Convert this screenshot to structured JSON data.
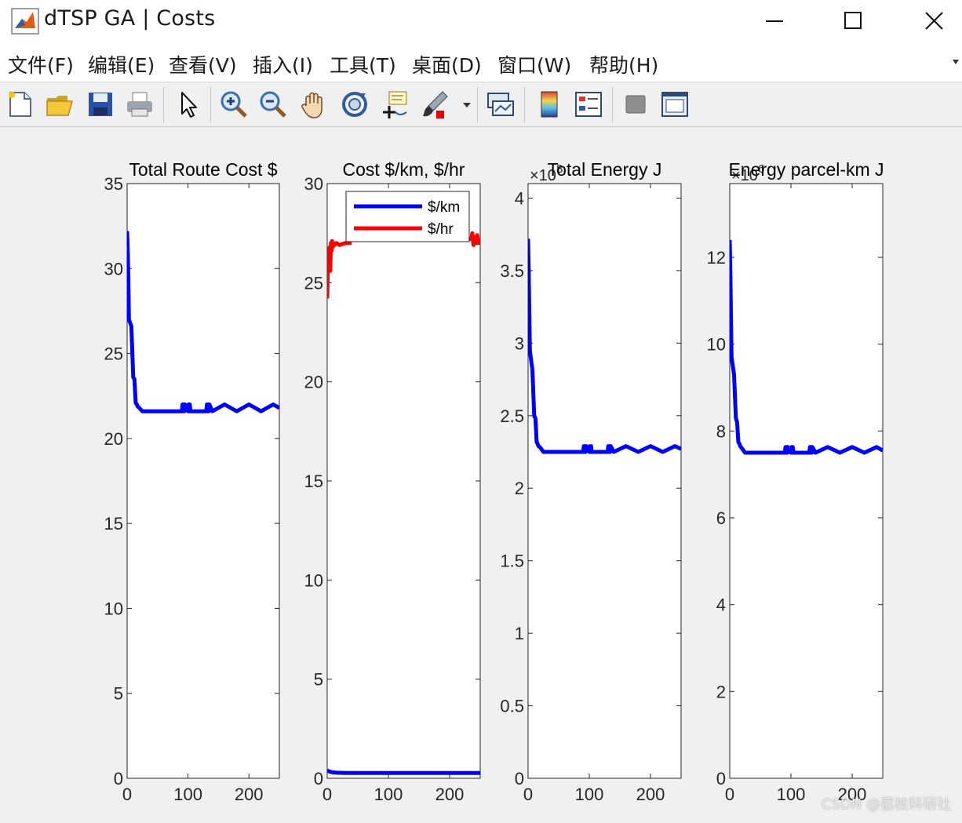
{
  "window": {
    "title": "dTSP GA | Costs"
  },
  "menu": [
    {
      "label": "文件(F)",
      "icon": "menu-file"
    },
    {
      "label": "编辑(E)",
      "icon": "menu-edit"
    },
    {
      "label": "查看(V)",
      "icon": "menu-view"
    },
    {
      "label": "插入(I)",
      "icon": "menu-insert"
    },
    {
      "label": "工具(T)",
      "icon": "menu-tools"
    },
    {
      "label": "桌面(D)",
      "icon": "menu-desktop"
    },
    {
      "label": "窗口(W)",
      "icon": "menu-window"
    },
    {
      "label": "帮助(H)",
      "icon": "menu-help"
    }
  ],
  "toolbar": [
    {
      "name": "new-figure-icon"
    },
    {
      "name": "open-file-icon"
    },
    {
      "name": "save-icon"
    },
    {
      "name": "print-icon"
    },
    {
      "name": "edit-plot-arrow-icon"
    },
    {
      "name": "zoom-in-icon"
    },
    {
      "name": "zoom-out-icon"
    },
    {
      "name": "pan-hand-icon"
    },
    {
      "name": "rotate-3d-icon"
    },
    {
      "name": "data-cursor-icon"
    },
    {
      "name": "brush-icon"
    },
    {
      "name": "link-plot-icon"
    },
    {
      "name": "colorbar-icon"
    },
    {
      "name": "legend-icon"
    },
    {
      "name": "hide-plot-tools-icon"
    },
    {
      "name": "show-plot-tools-icon"
    }
  ],
  "watermark": "CSDN @荔枝科研社",
  "chart_data": [
    {
      "type": "line",
      "title": "Total Route Cost $",
      "xlim": [
        0,
        250
      ],
      "xticks": [
        "0",
        "100",
        "200"
      ],
      "ylim": [
        0,
        35
      ],
      "yticks": [
        "0",
        "5",
        "10",
        "15",
        "20",
        "25",
        "30",
        "35"
      ],
      "exponent": "",
      "series": [
        {
          "color": "#0000ff",
          "x": [
            0,
            1,
            2,
            3,
            5,
            7,
            10,
            12,
            14,
            16,
            17,
            20,
            25,
            30,
            40,
            60,
            90,
            91,
            92,
            93,
            94,
            95,
            100,
            101,
            102,
            103,
            104,
            105,
            106,
            110,
            130,
            131,
            132,
            133,
            134,
            135,
            140,
            160,
            180,
            200,
            220,
            240,
            250
          ],
          "y": [
            32.2,
            31.0,
            29.5,
            27.0,
            26.8,
            26.6,
            23.6,
            23.5,
            22.1,
            22.0,
            21.9,
            21.8,
            21.6,
            21.6,
            21.6,
            21.6,
            21.6,
            22.0,
            21.6,
            22.0,
            21.6,
            22.0,
            21.6,
            22.0,
            21.6,
            22.0,
            21.6,
            21.6,
            21.6,
            21.6,
            21.6,
            22.0,
            21.6,
            22.0,
            21.6,
            22.0,
            21.6,
            22.0,
            21.6,
            22.0,
            21.6,
            22.0,
            21.8
          ]
        }
      ]
    },
    {
      "type": "line",
      "title": "Cost $/km, $/hr",
      "xlim": [
        0,
        250
      ],
      "xticks": [
        "0",
        "100",
        "200"
      ],
      "ylim": [
        0,
        30
      ],
      "yticks": [
        "0",
        "5",
        "10",
        "15",
        "20",
        "25",
        "30"
      ],
      "exponent": "",
      "legend": {
        "position": "top-right",
        "entries": [
          "$/km",
          "$/hr"
        ]
      },
      "series": [
        {
          "name": "$/km",
          "color": "#0000ff",
          "x": [
            0,
            3,
            8,
            15,
            30,
            60,
            100,
            150,
            200,
            250
          ],
          "y": [
            0.4,
            0.35,
            0.3,
            0.28,
            0.27,
            0.27,
            0.27,
            0.27,
            0.27,
            0.27
          ]
        },
        {
          "name": "$/hr",
          "color": "#ff0000",
          "x": [
            0,
            1,
            2,
            3,
            4,
            5,
            6,
            7,
            8,
            9,
            10,
            12,
            15,
            20,
            30,
            40
          ],
          "y": [
            24.2,
            25.8,
            26.5,
            26.0,
            26.8,
            25.6,
            27.0,
            26.6,
            27.1,
            26.8,
            27.0,
            26.9,
            27.0,
            26.9,
            27.0,
            27.0
          ]
        },
        {
          "name": "$/hr",
          "color": "#ff0000",
          "x": [
            235,
            237,
            239,
            241,
            243,
            245,
            247,
            250
          ],
          "y": [
            27.1,
            27.5,
            26.9,
            27.3,
            27.0,
            27.4,
            27.0,
            27.2
          ]
        }
      ]
    },
    {
      "type": "line",
      "title": "Total Energy J",
      "xlim": [
        0,
        250
      ],
      "xticks": [
        "0",
        "100",
        "200"
      ],
      "ylim": [
        0,
        4.1
      ],
      "yticks": [
        "0",
        "0.5",
        "1",
        "1.5",
        "2",
        "2.5",
        "3",
        "3.5",
        "4"
      ],
      "exponent": "×10",
      "exponent_power": "8",
      "series": [
        {
          "color": "#0000ff",
          "x": [
            0,
            1,
            2,
            3,
            5,
            7,
            10,
            12,
            14,
            16,
            17,
            20,
            25,
            30,
            40,
            60,
            90,
            91,
            92,
            93,
            94,
            95,
            100,
            101,
            102,
            103,
            104,
            105,
            106,
            110,
            130,
            131,
            132,
            133,
            134,
            135,
            140,
            160,
            180,
            200,
            220,
            240,
            250
          ],
          "y": [
            3.72,
            3.5,
            3.2,
            2.95,
            2.88,
            2.82,
            2.5,
            2.48,
            2.32,
            2.3,
            2.29,
            2.28,
            2.25,
            2.25,
            2.25,
            2.25,
            2.25,
            2.29,
            2.25,
            2.29,
            2.25,
            2.29,
            2.25,
            2.29,
            2.25,
            2.29,
            2.25,
            2.25,
            2.25,
            2.25,
            2.25,
            2.29,
            2.25,
            2.29,
            2.25,
            2.29,
            2.25,
            2.29,
            2.25,
            2.29,
            2.25,
            2.29,
            2.27
          ]
        }
      ]
    },
    {
      "type": "line",
      "title": "Energy parcel-km J",
      "xlim": [
        0,
        250
      ],
      "xticks": [
        "0",
        "100",
        "200"
      ],
      "ylim": [
        0,
        13.7
      ],
      "yticks": [
        "0",
        "2",
        "4",
        "6",
        "8",
        "10",
        "12"
      ],
      "exponent": "×10",
      "exponent_power": "6",
      "series": [
        {
          "color": "#0000ff",
          "x": [
            0,
            1,
            2,
            3,
            5,
            7,
            10,
            12,
            14,
            16,
            17,
            20,
            25,
            30,
            40,
            60,
            90,
            91,
            92,
            93,
            94,
            95,
            100,
            101,
            102,
            103,
            104,
            105,
            106,
            110,
            130,
            131,
            132,
            133,
            134,
            135,
            140,
            160,
            180,
            200,
            220,
            240,
            250
          ],
          "y": [
            12.4,
            11.6,
            10.6,
            9.7,
            9.5,
            9.3,
            8.3,
            8.2,
            7.75,
            7.7,
            7.65,
            7.6,
            7.5,
            7.5,
            7.5,
            7.5,
            7.5,
            7.63,
            7.5,
            7.63,
            7.5,
            7.63,
            7.5,
            7.63,
            7.5,
            7.63,
            7.5,
            7.5,
            7.5,
            7.5,
            7.5,
            7.63,
            7.5,
            7.63,
            7.5,
            7.63,
            7.5,
            7.63,
            7.5,
            7.63,
            7.5,
            7.63,
            7.55
          ]
        }
      ]
    }
  ]
}
